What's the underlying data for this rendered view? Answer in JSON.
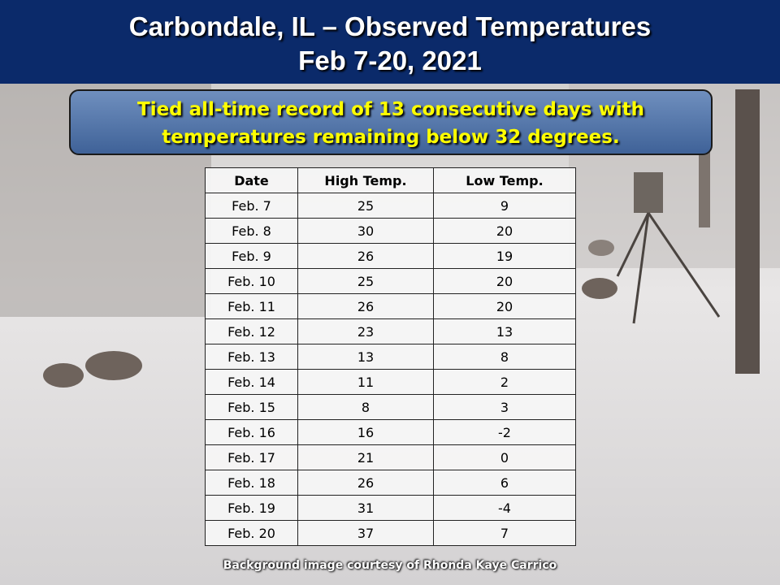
{
  "header": {
    "title_lines": [
      "Carbondale, IL – Observed Temperatures",
      "Feb 7-20, 2021"
    ]
  },
  "callout": {
    "lines": [
      "Tied all-time record of 13 consecutive days with",
      "temperatures remaining below 32 degrees."
    ]
  },
  "table": {
    "columns": [
      "Date",
      "High Temp.",
      "Low Temp."
    ],
    "rows": [
      [
        "Feb. 7",
        25,
        9
      ],
      [
        "Feb. 8",
        30,
        20
      ],
      [
        "Feb. 9",
        26,
        19
      ],
      [
        "Feb. 10",
        25,
        20
      ],
      [
        "Feb. 11",
        26,
        20
      ],
      [
        "Feb. 12",
        23,
        13
      ],
      [
        "Feb. 13",
        13,
        8
      ],
      [
        "Feb. 14",
        11,
        2
      ],
      [
        "Feb. 15",
        8,
        3
      ],
      [
        "Feb. 16",
        16,
        -2
      ],
      [
        "Feb. 17",
        21,
        0
      ],
      [
        "Feb. 18",
        26,
        6
      ],
      [
        "Feb. 19",
        31,
        -4
      ],
      [
        "Feb. 20",
        37,
        7
      ]
    ]
  },
  "footer": {
    "credit": "Background  image courtesy of Rhonda Kaye Carrico"
  }
}
